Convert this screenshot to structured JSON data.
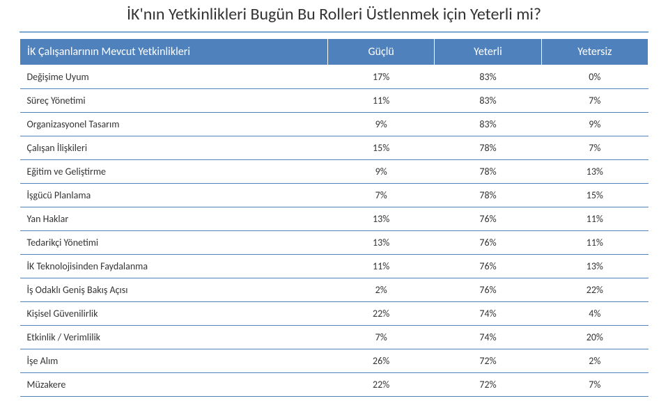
{
  "title": "İK'nın Yetkinlikleri Bugün Bu Rolleri Üstlenmek için Yeterli mi?",
  "headers": {
    "label": "İK Çalışanlarının Mevcut Yetkinlikleri",
    "c1": "Güçlü",
    "c2": "Yeterli",
    "c3": "Yetersiz"
  },
  "rows": [
    {
      "label": "Değişime Uyum",
      "v1": "17%",
      "v2": "83%",
      "v3": "0%"
    },
    {
      "label": "Süreç Yönetimi",
      "v1": "11%",
      "v2": "83%",
      "v3": "7%"
    },
    {
      "label": "Organizasyonel Tasarım",
      "v1": "9%",
      "v2": "83%",
      "v3": "9%"
    },
    {
      "label": "Çalışan İlişkileri",
      "v1": "15%",
      "v2": "78%",
      "v3": "7%"
    },
    {
      "label": "Eğitim ve Geliştirme",
      "v1": "9%",
      "v2": "78%",
      "v3": "13%"
    },
    {
      "label": "İşgücü Planlama",
      "v1": "7%",
      "v2": "78%",
      "v3": "15%"
    },
    {
      "label": "Yan Haklar",
      "v1": "13%",
      "v2": "76%",
      "v3": "11%"
    },
    {
      "label": "Tedarikçi Yönetimi",
      "v1": "13%",
      "v2": "76%",
      "v3": "11%"
    },
    {
      "label": "İK Teknolojisinden Faydalanma",
      "v1": "11%",
      "v2": "76%",
      "v3": "13%"
    },
    {
      "label": "İş Odaklı Geniş Bakış Açısı",
      "v1": "2%",
      "v2": "76%",
      "v3": "22%"
    },
    {
      "label": "Kişisel Güvenilirlik",
      "v1": "22%",
      "v2": "74%",
      "v3": "4%"
    },
    {
      "label": "Etkinlik / Verimlilik",
      "v1": "7%",
      "v2": "74%",
      "v3": "20%"
    },
    {
      "label": "İşe Alım",
      "v1": "26%",
      "v2": "72%",
      "v3": "2%"
    },
    {
      "label": "Müzakere",
      "v1": "22%",
      "v2": "72%",
      "v3": "7%"
    }
  ],
  "colors": {
    "header_bg": "#4f81bd",
    "header_text": "#ffffff",
    "row_border": "#4f81bd",
    "divider": "#7aa8d4",
    "text": "#333333",
    "page_bg": "#ffffff"
  }
}
